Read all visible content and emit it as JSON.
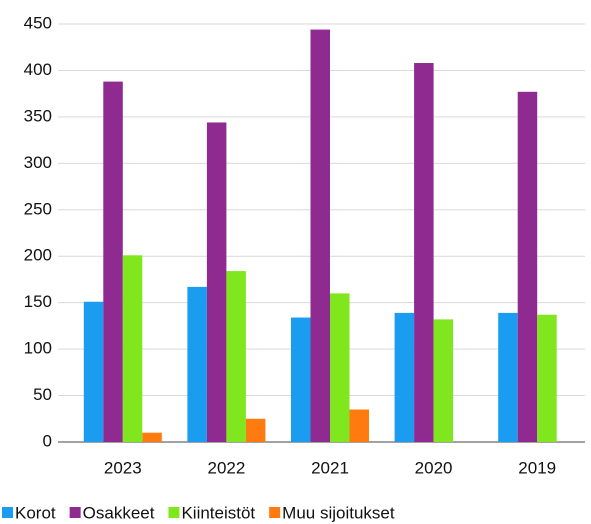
{
  "chart_data": {
    "type": "bar",
    "categories": [
      "2023",
      "2022",
      "2021",
      "2020",
      "2019"
    ],
    "series": [
      {
        "name": "Korot",
        "color": "#1a9cf0",
        "values": [
          151,
          167,
          134,
          139,
          139
        ]
      },
      {
        "name": "Osakkeet",
        "color": "#8f2a91",
        "values": [
          388,
          344,
          444,
          408,
          377
        ]
      },
      {
        "name": "Kiinteistöt",
        "color": "#80e61e",
        "values": [
          201,
          184,
          160,
          132,
          137
        ]
      },
      {
        "name": "Muu sijoitukset",
        "color": "#ff7b10",
        "values": [
          10,
          25,
          35,
          0,
          0
        ]
      }
    ],
    "ylim": [
      0,
      450
    ],
    "yticks": [
      0,
      50,
      100,
      150,
      200,
      250,
      300,
      350,
      400,
      450
    ],
    "grid": true,
    "legend": "bottom"
  }
}
